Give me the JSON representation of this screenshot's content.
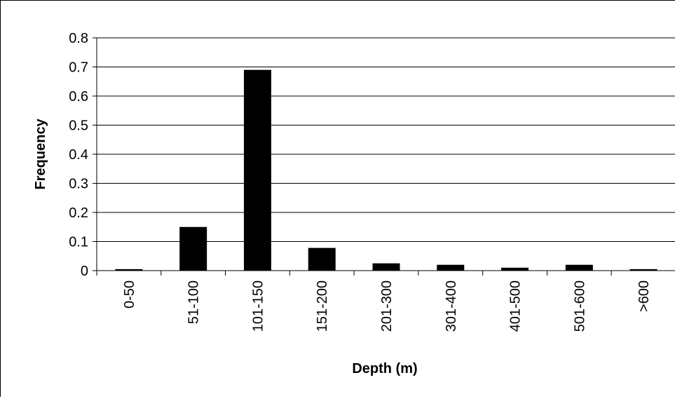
{
  "chart_data": {
    "type": "bar",
    "title": "",
    "xlabel": "Depth (m)",
    "ylabel": "Frequency",
    "categories": [
      "0-50",
      "51-100",
      "101-150",
      "151-200",
      "201-300",
      "301-400",
      "401-500",
      "501-600",
      ">600"
    ],
    "values": [
      0.005,
      0.15,
      0.69,
      0.078,
      0.025,
      0.02,
      0.01,
      0.02,
      0.005
    ],
    "ylim": [
      0,
      0.8
    ],
    "yticks": [
      "0",
      "0.1",
      "0.2",
      "0.3",
      "0.4",
      "0.5",
      "0.6",
      "0.7",
      "0.8"
    ],
    "grid": true,
    "legend": "none",
    "bar_color": "#000000",
    "gridline_color": "#000000"
  }
}
